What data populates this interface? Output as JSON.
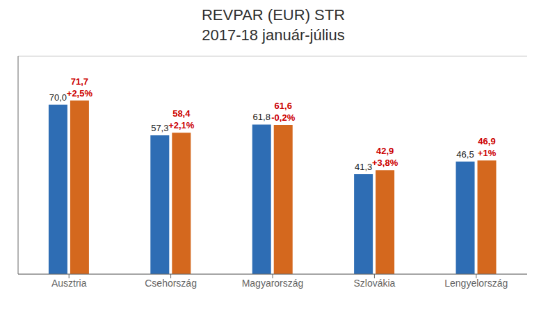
{
  "chart_data": {
    "type": "bar",
    "title": "REVPAR (EUR) STR",
    "subtitle": "2017-18 január-július",
    "categories": [
      "Ausztria",
      "Csehország",
      "Magyarország",
      "Szlovákia",
      "Lengyelország"
    ],
    "series": [
      {
        "color": "#2E6DB4",
        "values": [
          70.0,
          57.3,
          61.8,
          41.3,
          46.5
        ],
        "value_labels": [
          "70,0",
          "57,3",
          "61,8",
          "41,3",
          "46,5"
        ]
      },
      {
        "color": "#D4681E",
        "values": [
          71.7,
          58.4,
          61.6,
          42.9,
          46.9
        ],
        "value_labels": [
          "71,7",
          "58,4",
          "61,6",
          "42,9",
          "46,9"
        ],
        "annotations": [
          "+2,5%",
          "+2,1%",
          "-0,2%",
          "+3,8%",
          "+1%"
        ]
      }
    ],
    "ylim": [
      0,
      90
    ],
    "yticks": [
      0,
      10,
      20,
      30,
      40,
      50,
      60,
      70
    ],
    "grid": true,
    "data_labels": true,
    "tick_labels": "x"
  }
}
